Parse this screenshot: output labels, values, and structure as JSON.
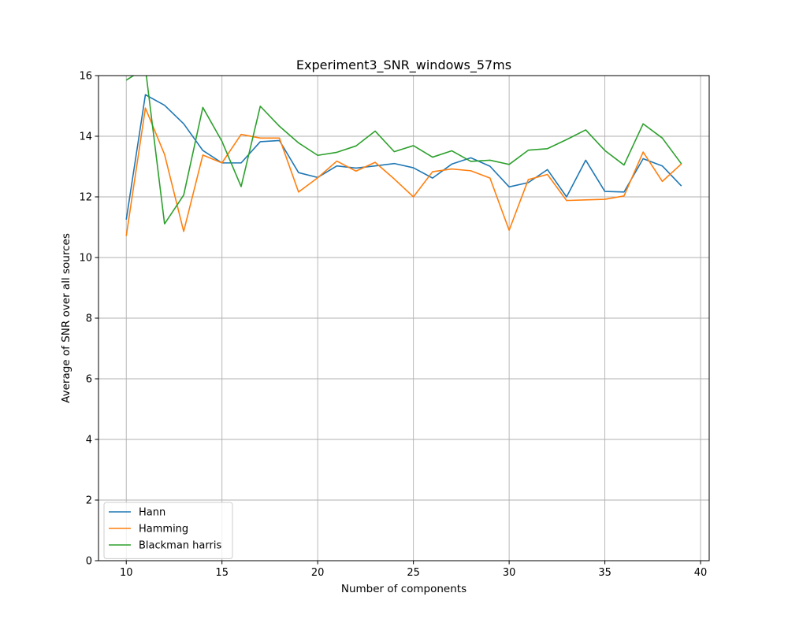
{
  "chart_data": {
    "type": "line",
    "title": "Experiment3_SNR_windows_57ms",
    "xlabel": "Number of components",
    "ylabel": "Average of SNR over all sources",
    "xlim": [
      8.55,
      40.45
    ],
    "ylim": [
      0,
      16
    ],
    "xticks": [
      10,
      15,
      20,
      25,
      30,
      35,
      40
    ],
    "yticks": [
      0,
      2,
      4,
      6,
      8,
      10,
      12,
      14,
      16
    ],
    "grid": true,
    "legend_position": "lower-left",
    "x": [
      10,
      11,
      12,
      13,
      14,
      15,
      16,
      17,
      18,
      19,
      20,
      21,
      22,
      23,
      24,
      25,
      26,
      27,
      28,
      29,
      30,
      31,
      32,
      33,
      34,
      35,
      36,
      37,
      38,
      39
    ],
    "series": [
      {
        "name": "Hann",
        "color": "#1f77b4",
        "values": [
          11.25,
          15.37,
          15.02,
          14.41,
          13.53,
          13.12,
          13.12,
          13.82,
          13.86,
          12.8,
          12.64,
          13.02,
          12.95,
          13.02,
          13.1,
          12.96,
          12.62,
          13.08,
          13.29,
          13.01,
          12.33,
          12.47,
          12.9,
          12.0,
          13.21,
          12.18,
          12.16,
          13.26,
          13.02,
          12.36
        ]
      },
      {
        "name": "Hamming",
        "color": "#ff7f0e",
        "values": [
          10.71,
          14.93,
          13.4,
          10.86,
          13.38,
          13.12,
          14.06,
          13.94,
          13.94,
          12.16,
          12.63,
          13.18,
          12.85,
          13.14,
          12.59,
          12.0,
          12.83,
          12.92,
          12.86,
          12.62,
          10.9,
          12.57,
          12.74,
          11.88,
          11.9,
          11.92,
          12.03,
          13.48,
          12.51,
          13.09
        ]
      },
      {
        "name": "Blackman harris",
        "color": "#2ca02c",
        "values": [
          15.85,
          16.25,
          11.11,
          12.06,
          14.95,
          13.83,
          12.34,
          14.99,
          14.33,
          13.78,
          13.37,
          13.47,
          13.68,
          14.17,
          13.49,
          13.69,
          13.31,
          13.52,
          13.17,
          13.21,
          13.07,
          13.54,
          13.59,
          13.89,
          14.21,
          13.53,
          13.05,
          14.41,
          13.94,
          13.09
        ]
      }
    ]
  }
}
